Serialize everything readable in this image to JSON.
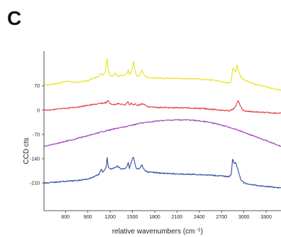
{
  "panel_label": "C",
  "chart_data": {
    "type": "line",
    "title": "",
    "xlabel": "relative wavenumbers (cm",
    "xlabel_superscript": "-1",
    "xlabel_suffix": ")",
    "ylabel": "CCD cts",
    "xlim": [
      310,
      3500
    ],
    "ylim": [
      -290,
      170
    ],
    "xticks": [
      600,
      900,
      1200,
      1500,
      1800,
      2100,
      2400,
      2700,
      3000,
      3300
    ],
    "xtick_labels": [
      "600",
      "900",
      "1200",
      "1500",
      "1800",
      "2100",
      "2400",
      "2700",
      "3000",
      "3300"
    ],
    "yticks": [
      70,
      0,
      -70,
      -140,
      -210
    ],
    "ytick_labels": [
      "70",
      "0",
      "-70",
      "-140",
      "-210"
    ],
    "grid": false,
    "series": [
      {
        "color": "#e8e21c",
        "x": [
          310,
          400,
          500,
          580,
          620,
          700,
          800,
          900,
          950,
          1000,
          1040,
          1080,
          1100,
          1130,
          1150,
          1160,
          1175,
          1200,
          1240,
          1270,
          1300,
          1340,
          1400,
          1430,
          1445,
          1460,
          1480,
          1500,
          1515,
          1530,
          1545,
          1560,
          1580,
          1600,
          1630,
          1650,
          1670,
          1700,
          1750,
          1800,
          1900,
          2000,
          2100,
          2200,
          2300,
          2400,
          2500,
          2600,
          2700,
          2800,
          2830,
          2850,
          2870,
          2890,
          2910,
          2930,
          2960,
          3000,
          3100,
          3200,
          3300,
          3400,
          3500
        ],
        "y": [
          72,
          74,
          77,
          82,
          84,
          80,
          82,
          85,
          90,
          94,
          96,
          105,
          100,
          108,
          130,
          147,
          115,
          100,
          98,
          106,
          98,
          100,
          102,
          108,
          118,
          102,
          110,
          122,
          140,
          120,
          106,
          100,
          98,
          102,
          115,
          104,
          98,
          95,
          93,
          93,
          92,
          92,
          92,
          91,
          90,
          90,
          88,
          86,
          82,
          78,
          82,
          120,
          118,
          110,
          130,
          112,
          96,
          88,
          78,
          72,
          67,
          62,
          58
        ]
      },
      {
        "color": "#e8383a",
        "x": [
          310,
          400,
          500,
          600,
          700,
          800,
          900,
          1000,
          1100,
          1150,
          1175,
          1200,
          1250,
          1300,
          1350,
          1400,
          1440,
          1460,
          1480,
          1500,
          1520,
          1540,
          1560,
          1600,
          1650,
          1700,
          1800,
          1900,
          2000,
          2100,
          2200,
          2300,
          2400,
          2500,
          2600,
          2700,
          2800,
          2850,
          2890,
          2920,
          2940,
          2960,
          2980,
          3000,
          3100,
          3200,
          3300,
          3400,
          3500
        ],
        "y": [
          0,
          1,
          3,
          5,
          8,
          10,
          14,
          17,
          20,
          22,
          28,
          18,
          16,
          19,
          17,
          15,
          25,
          14,
          20,
          18,
          15,
          18,
          14,
          16,
          18,
          10,
          8,
          8,
          7,
          7,
          7,
          6,
          5,
          4,
          2,
          0,
          -2,
          2,
          10,
          28,
          20,
          10,
          2,
          -2,
          -4,
          -6,
          -7,
          -8,
          -9
        ]
      },
      {
        "color": "#a244b8",
        "x": [
          310,
          400,
          500,
          600,
          700,
          800,
          900,
          1000,
          1100,
          1200,
          1300,
          1400,
          1500,
          1600,
          1700,
          1800,
          1900,
          2000,
          2100,
          2200,
          2300,
          2400,
          2500,
          2600,
          2700,
          2800,
          2900,
          3000,
          3100,
          3200,
          3300,
          3400,
          3500
        ],
        "y": [
          -105,
          -100,
          -95,
          -90,
          -85,
          -79,
          -74,
          -68,
          -62,
          -57,
          -52,
          -48,
          -43,
          -38,
          -35,
          -32,
          -30,
          -29,
          -28,
          -28,
          -29,
          -31,
          -34,
          -38,
          -43,
          -49,
          -56,
          -64,
          -72,
          -80,
          -88,
          -96,
          -104
        ]
      },
      {
        "color": "#2e4da0",
        "x": [
          310,
          400,
          500,
          600,
          700,
          800,
          900,
          950,
          1000,
          1050,
          1080,
          1100,
          1130,
          1150,
          1160,
          1175,
          1200,
          1250,
          1300,
          1350,
          1400,
          1430,
          1445,
          1460,
          1480,
          1500,
          1515,
          1530,
          1545,
          1560,
          1600,
          1630,
          1650,
          1670,
          1700,
          1800,
          1900,
          2000,
          2100,
          2200,
          2300,
          2400,
          2500,
          2600,
          2700,
          2800,
          2830,
          2850,
          2870,
          2890,
          2910,
          2930,
          2960,
          3000,
          3100,
          3200,
          3300,
          3400,
          3500
        ],
        "y": [
          -210,
          -209,
          -207,
          -205,
          -204,
          -202,
          -198,
          -196,
          -190,
          -186,
          -170,
          -178,
          -172,
          -160,
          -135,
          -165,
          -170,
          -168,
          -162,
          -170,
          -168,
          -160,
          -150,
          -168,
          -155,
          -140,
          -135,
          -150,
          -165,
          -170,
          -168,
          -158,
          -170,
          -175,
          -178,
          -180,
          -182,
          -183,
          -184,
          -185,
          -185,
          -186,
          -187,
          -188,
          -190,
          -192,
          -185,
          -140,
          -155,
          -150,
          -165,
          -180,
          -200,
          -210,
          -215,
          -218,
          -220,
          -222,
          -224
        ]
      }
    ]
  }
}
